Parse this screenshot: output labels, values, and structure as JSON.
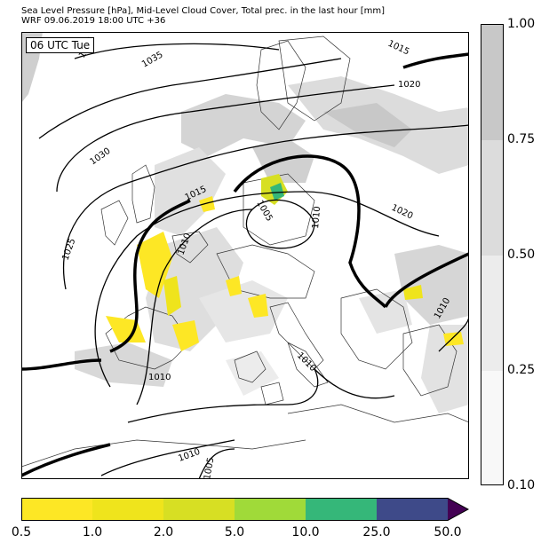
{
  "header": {
    "title_line_1": "Sea Level Pressure [hPa], Mid-Level Cloud Cover, Total prec. in the last hour [mm]",
    "title_line_2": "WRF 09.06.2019 18:00 UTC +36"
  },
  "map": {
    "valid_time_badge": "06 UTC Tue",
    "isobar_labels": [
      "1035",
      "1030",
      "1025",
      "1020",
      "1015",
      "1015",
      "1010",
      "1010",
      "1010",
      "1010",
      "1010",
      "1010",
      "1005",
      "1005",
      "1020",
      "1015"
    ]
  },
  "cloud_colorbar": {
    "ticks": [
      "1.00",
      "0.75",
      "0.50",
      "0.25",
      "0.10"
    ],
    "colors": [
      "#c8c8c8",
      "#dcdcdc",
      "#ececec",
      "#f8f8f8"
    ]
  },
  "precip_colorbar": {
    "ticks": [
      "0.5",
      "1.0",
      "2.0",
      "5.0",
      "10.0",
      "25.0",
      "50.0"
    ],
    "colors": [
      "#fde725",
      "#efe41c",
      "#d7df23",
      "#a0da39",
      "#35b779",
      "#3e4a89",
      "#440154"
    ]
  }
}
